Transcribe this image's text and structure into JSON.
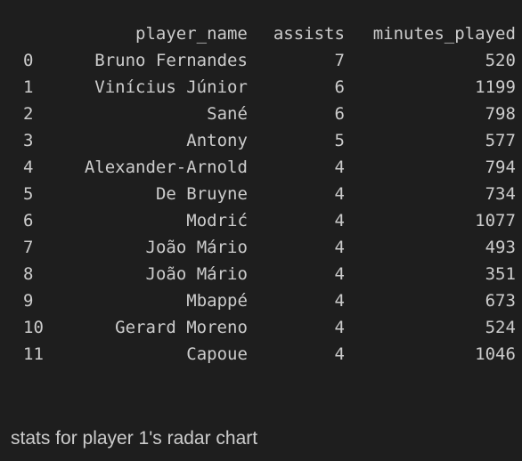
{
  "table": {
    "columns": [
      "",
      "player_name",
      "assists",
      "minutes_played"
    ],
    "rows": [
      {
        "index": "0",
        "player_name": "Bruno Fernandes",
        "assists": "7",
        "minutes_played": "520"
      },
      {
        "index": "1",
        "player_name": "Vinícius Júnior",
        "assists": "6",
        "minutes_played": "1199"
      },
      {
        "index": "2",
        "player_name": "Sané",
        "assists": "6",
        "minutes_played": "798"
      },
      {
        "index": "3",
        "player_name": "Antony",
        "assists": "5",
        "minutes_played": "577"
      },
      {
        "index": "4",
        "player_name": "Alexander-Arnold",
        "assists": "4",
        "minutes_played": "794"
      },
      {
        "index": "5",
        "player_name": "De Bruyne",
        "assists": "4",
        "minutes_played": "734"
      },
      {
        "index": "6",
        "player_name": "Modrić",
        "assists": "4",
        "minutes_played": "1077"
      },
      {
        "index": "7",
        "player_name": "João Mário",
        "assists": "4",
        "minutes_played": "493"
      },
      {
        "index": "8",
        "player_name": "João Mário",
        "assists": "4",
        "minutes_played": "351"
      },
      {
        "index": "9",
        "player_name": "Mbappé",
        "assists": "4",
        "minutes_played": "673"
      },
      {
        "index": "10",
        "player_name": "Gerard Moreno",
        "assists": "4",
        "minutes_played": "524"
      },
      {
        "index": "11",
        "player_name": "Capoue",
        "assists": "4",
        "minutes_played": "1046"
      }
    ]
  },
  "caption": "stats for player 1's radar chart",
  "colors": {
    "background": "#1e1e1e",
    "text": "#cccccc"
  }
}
